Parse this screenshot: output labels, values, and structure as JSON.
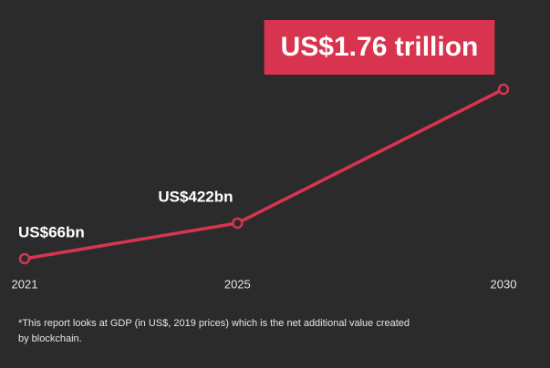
{
  "chart_data": {
    "type": "line",
    "x": [
      2021,
      2025,
      2030
    ],
    "series": [
      {
        "color": "#d9344f",
        "values": [
          66,
          422,
          1760
        ],
        "value_labels": [
          "US$66bn",
          "US$422bn",
          "US$1.76 trillion"
        ]
      }
    ],
    "footnote": "*This report looks at GDP (in US$, 2019 prices) which is the net additional value created by blockchain."
  }
}
